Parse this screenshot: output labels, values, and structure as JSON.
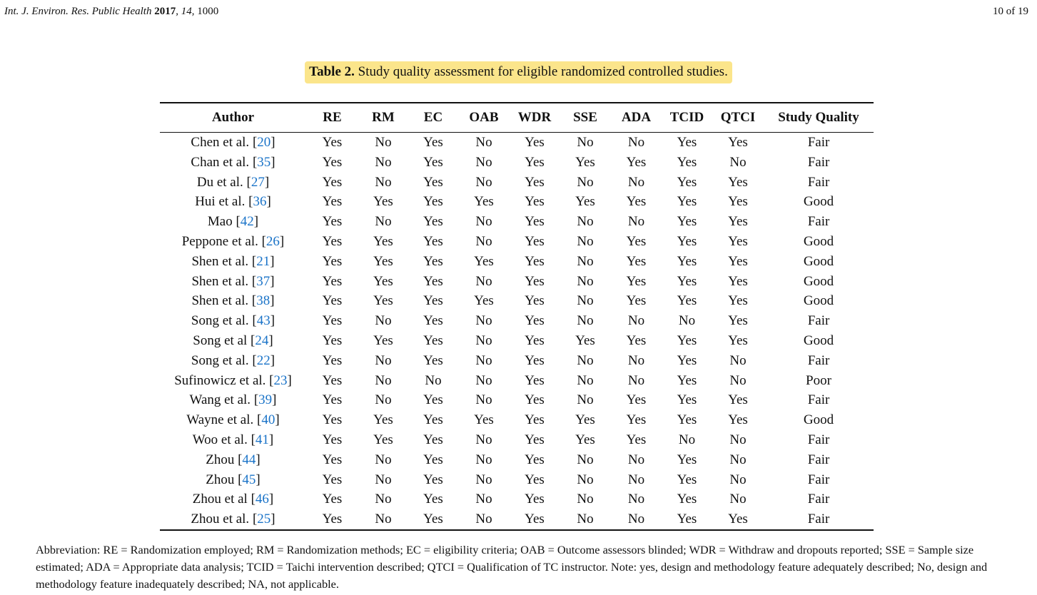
{
  "header": {
    "journal": "Int. J. Environ. Res. Public Health",
    "year": "2017",
    "volume": "14",
    "article": "1000",
    "page": "10 of 19"
  },
  "caption": {
    "label": "Table 2.",
    "text": "Study quality assessment for eligible randomized controlled studies."
  },
  "columns": [
    "Author",
    "RE",
    "RM",
    "EC",
    "OAB",
    "WDR",
    "SSE",
    "ADA",
    "TCID",
    "QTCI",
    "Study Quality"
  ],
  "rows": [
    {
      "author": "Chen et al.",
      "ref": "20",
      "values": [
        "Yes",
        "No",
        "Yes",
        "No",
        "Yes",
        "No",
        "No",
        "Yes",
        "Yes",
        "Fair"
      ]
    },
    {
      "author": "Chan et al.",
      "ref": "35",
      "values": [
        "Yes",
        "No",
        "Yes",
        "No",
        "Yes",
        "Yes",
        "Yes",
        "Yes",
        "No",
        "Fair"
      ]
    },
    {
      "author": "Du et al.",
      "ref": "27",
      "values": [
        "Yes",
        "No",
        "Yes",
        "No",
        "Yes",
        "No",
        "No",
        "Yes",
        "Yes",
        "Fair"
      ]
    },
    {
      "author": "Hui et al.",
      "ref": "36",
      "values": [
        "Yes",
        "Yes",
        "Yes",
        "Yes",
        "Yes",
        "Yes",
        "Yes",
        "Yes",
        "Yes",
        "Good"
      ]
    },
    {
      "author": "Mao",
      "ref": "42",
      "values": [
        "Yes",
        "No",
        "Yes",
        "No",
        "Yes",
        "No",
        "No",
        "Yes",
        "Yes",
        "Fair"
      ]
    },
    {
      "author": "Peppone et al.",
      "ref": "26",
      "values": [
        "Yes",
        "Yes",
        "Yes",
        "No",
        "Yes",
        "No",
        "Yes",
        "Yes",
        "Yes",
        "Good"
      ]
    },
    {
      "author": "Shen et al.",
      "ref": "21",
      "values": [
        "Yes",
        "Yes",
        "Yes",
        "Yes",
        "Yes",
        "No",
        "Yes",
        "Yes",
        "Yes",
        "Good"
      ]
    },
    {
      "author": "Shen et al.",
      "ref": "37",
      "values": [
        "Yes",
        "Yes",
        "Yes",
        "No",
        "Yes",
        "No",
        "Yes",
        "Yes",
        "Yes",
        "Good"
      ]
    },
    {
      "author": "Shen et al.",
      "ref": "38",
      "values": [
        "Yes",
        "Yes",
        "Yes",
        "Yes",
        "Yes",
        "No",
        "Yes",
        "Yes",
        "Yes",
        "Good"
      ]
    },
    {
      "author": "Song et al.",
      "ref": "43",
      "values": [
        "Yes",
        "No",
        "Yes",
        "No",
        "Yes",
        "No",
        "No",
        "No",
        "Yes",
        "Fair"
      ]
    },
    {
      "author": "Song et al",
      "ref": "24",
      "values": [
        "Yes",
        "Yes",
        "Yes",
        "No",
        "Yes",
        "Yes",
        "Yes",
        "Yes",
        "Yes",
        "Good"
      ]
    },
    {
      "author": "Song et al.",
      "ref": "22",
      "values": [
        "Yes",
        "No",
        "Yes",
        "No",
        "Yes",
        "No",
        "No",
        "Yes",
        "No",
        "Fair"
      ]
    },
    {
      "author": "Sufinowicz et al.",
      "ref": "23",
      "values": [
        "Yes",
        "No",
        "No",
        "No",
        "Yes",
        "No",
        "No",
        "Yes",
        "No",
        "Poor"
      ]
    },
    {
      "author": "Wang et al.",
      "ref": "39",
      "values": [
        "Yes",
        "No",
        "Yes",
        "No",
        "Yes",
        "No",
        "Yes",
        "Yes",
        "Yes",
        "Fair"
      ]
    },
    {
      "author": "Wayne et al.",
      "ref": "40",
      "values": [
        "Yes",
        "Yes",
        "Yes",
        "Yes",
        "Yes",
        "Yes",
        "Yes",
        "Yes",
        "Yes",
        "Good"
      ]
    },
    {
      "author": "Woo et al.",
      "ref": "41",
      "values": [
        "Yes",
        "Yes",
        "Yes",
        "No",
        "Yes",
        "Yes",
        "Yes",
        "No",
        "No",
        "Fair"
      ]
    },
    {
      "author": "Zhou",
      "ref": "44",
      "values": [
        "Yes",
        "No",
        "Yes",
        "No",
        "Yes",
        "No",
        "No",
        "Yes",
        "No",
        "Fair"
      ]
    },
    {
      "author": "Zhou",
      "ref": "45",
      "values": [
        "Yes",
        "No",
        "Yes",
        "No",
        "Yes",
        "No",
        "No",
        "Yes",
        "No",
        "Fair"
      ]
    },
    {
      "author": "Zhou et al",
      "ref": "46",
      "values": [
        "Yes",
        "No",
        "Yes",
        "No",
        "Yes",
        "No",
        "No",
        "Yes",
        "No",
        "Fair"
      ]
    },
    {
      "author": "Zhou et al.",
      "ref": "25",
      "values": [
        "Yes",
        "No",
        "Yes",
        "No",
        "Yes",
        "No",
        "No",
        "Yes",
        "Yes",
        "Fair"
      ]
    }
  ],
  "footnote": "Abbreviation: RE = Randomization employed; RM = Randomization methods; EC = eligibility criteria; OAB = Outcome assessors blinded; WDR = Withdraw and dropouts reported; SSE = Sample size estimated; ADA = Appropriate data analysis; TCID = Taichi intervention described; QTCI = Qualification of TC instructor. Note: yes, design and methodology feature adequately described; No, design and methodology feature inadequately described; NA, not applicable.",
  "colors": {
    "reference_link": "#1a73c8",
    "caption_highlight": "#fbe58b"
  }
}
